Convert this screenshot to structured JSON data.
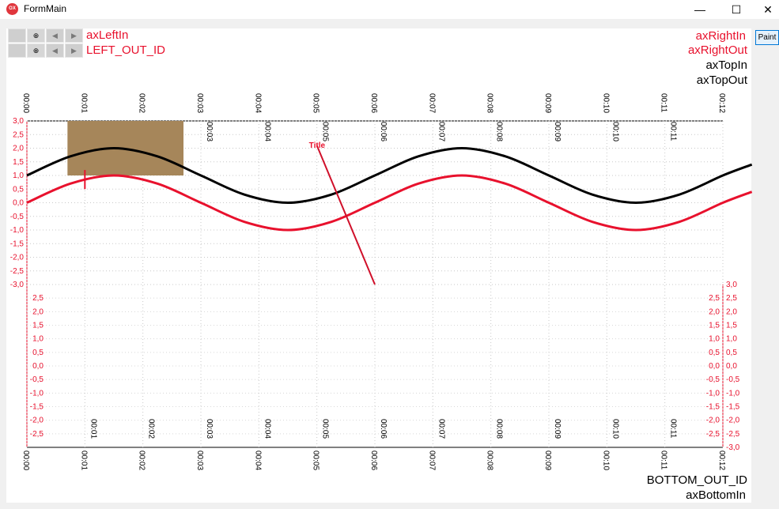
{
  "window": {
    "title": "FormMain",
    "icon": "OX",
    "minimize": "—",
    "maximize": "☐",
    "close": "✕"
  },
  "toolbar": {
    "zoom_icon": "⊕",
    "left_icon": "◀",
    "right_icon": "▶"
  },
  "axes": {
    "left_in": "axLeftIn",
    "left_out": "LEFT_OUT_ID",
    "right_in": "axRightIn",
    "right_out": "axRightOut",
    "top_in": "axTopIn",
    "top_out": "axTopOut",
    "bottom_out": "BOTTOM_OUT_ID",
    "bottom_in": "axBottomIn"
  },
  "paint_button": "Paint",
  "colors": {
    "red": "#e8112d",
    "black": "#000000",
    "band": "#a6865a"
  },
  "chart_data": {
    "type": "line",
    "time_ticks": [
      "00:00",
      "00:01",
      "00:02",
      "00:03",
      "00:04",
      "00:05",
      "00:06",
      "00:07",
      "00:08",
      "00:09",
      "00:10",
      "00:11",
      "00:12"
    ],
    "y_ticks_upper": [
      "3,0",
      "2,5",
      "2,0",
      "1,5",
      "1,0",
      "0,5",
      "0,0",
      "-0,5",
      "-1,0",
      "-1,5",
      "-2,0",
      "-2,5",
      "-3,0"
    ],
    "y_ticks_lower": [
      "2,5",
      "2,0",
      "1,5",
      "1,0",
      "0,5",
      "0,0",
      "-0,5",
      "-1,0",
      "-1,5",
      "-2,0",
      "-2,5"
    ],
    "y_ticks_right_out": [
      "3,0",
      "2,5",
      "2,0",
      "1,5",
      "1,0",
      "0,5",
      "0,0",
      "-0,5",
      "-1,0",
      "-1,5",
      "-2,0",
      "-2,5",
      "-3,0"
    ],
    "ylim": [
      -3,
      3
    ],
    "xlim_minutes": [
      0,
      12
    ],
    "series": [
      {
        "color": "black",
        "values": [
          1.0,
          1.7,
          2.0,
          1.7,
          1.0,
          0.3,
          0.0,
          0.3,
          1.0,
          1.7,
          2.0,
          1.7,
          1.0,
          0.3,
          0.0,
          0.3,
          1.0,
          1.4
        ]
      },
      {
        "color": "red",
        "values": [
          0.0,
          0.7,
          1.0,
          0.7,
          0.0,
          -0.7,
          -1.0,
          -0.7,
          0.0,
          0.7,
          1.0,
          0.7,
          0.0,
          -0.7,
          -1.0,
          -0.7,
          0.0,
          0.4
        ]
      }
    ],
    "series_x_minutes": [
      0,
      0.75,
      1.5,
      2.25,
      3,
      3.75,
      4.5,
      5.25,
      6,
      6.75,
      7.5,
      8.25,
      9,
      9.75,
      10.5,
      11.25,
      12,
      12.5
    ],
    "band": {
      "x_from": 0.7,
      "x_to": 2.7,
      "y_from": 1.0,
      "y_to": 3.0
    },
    "annotation": {
      "text": "Title",
      "x": 5.0,
      "y": 2.1,
      "line_to_x": 6.0,
      "line_to_y": -3.0
    },
    "cursor_mark": {
      "x": 1.0,
      "y": 1.2,
      "y2": 0.5
    },
    "grid": true
  }
}
